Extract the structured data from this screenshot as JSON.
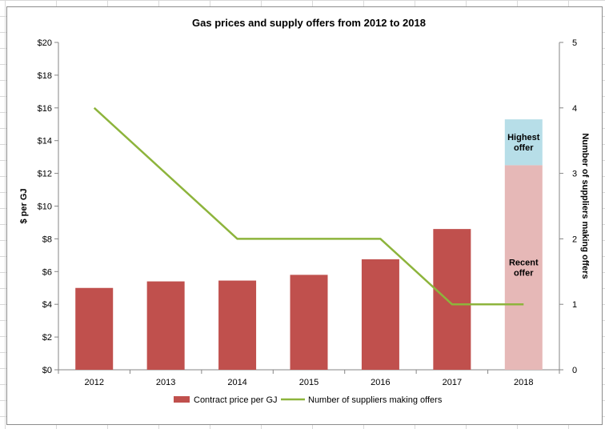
{
  "chart_data": {
    "type": "bar",
    "title": "Gas prices and supply offers from 2012 to 2018",
    "categories": [
      "2012",
      "2013",
      "2014",
      "2015",
      "2016",
      "2017",
      "2018"
    ],
    "ylabel": "$ per GJ",
    "y2label": "Number of suppliers making offers",
    "ylim": [
      0,
      20
    ],
    "y2lim": [
      0,
      5
    ],
    "yticks": [
      "$0",
      "$2",
      "$4",
      "$6",
      "$8",
      "$10",
      "$12",
      "$14",
      "$16",
      "$18",
      "$20"
    ],
    "y2ticks": [
      "0",
      "1",
      "2",
      "3",
      "4",
      "5"
    ],
    "series": [
      {
        "name": "Contract price per GJ",
        "type": "bar",
        "axis": "left",
        "color": "#c0504d",
        "values": [
          5.0,
          5.4,
          5.45,
          5.8,
          6.75,
          8.6,
          null
        ]
      },
      {
        "name": "Number of suppliers making offers",
        "type": "line",
        "axis": "right",
        "color": "#8db43c",
        "values": [
          4,
          null,
          2,
          2,
          2,
          1,
          1
        ]
      }
    ],
    "stacked_bar_2018": {
      "category": "2018",
      "segments": [
        {
          "label": "Recent offer",
          "value": 12.5,
          "color": "#e6b8b7"
        },
        {
          "label": "Highest offer",
          "value": 2.8,
          "color": "#b7dee8"
        }
      ]
    },
    "grid": false,
    "legend_position": "bottom"
  }
}
